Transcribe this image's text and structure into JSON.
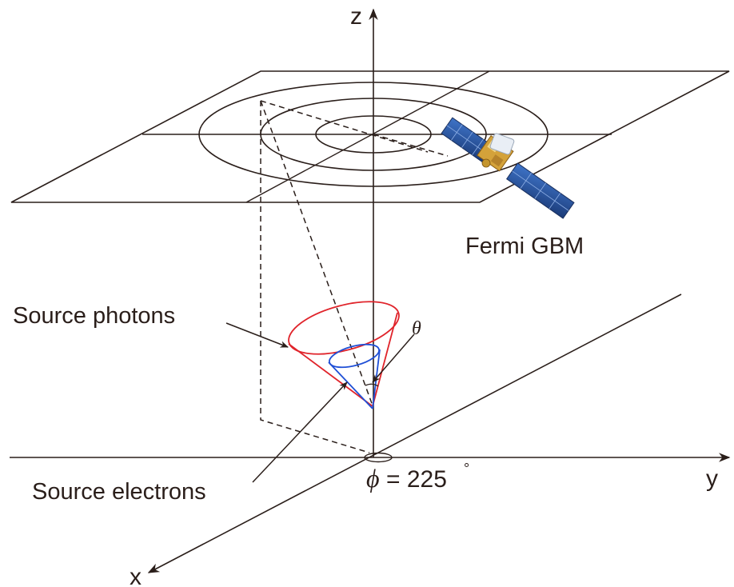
{
  "diagram": {
    "axes": {
      "z_label": "z",
      "y_label": "y",
      "x_label": "x"
    },
    "labels": {
      "satellite": "Fermi GBM",
      "photons": "Source photons",
      "electrons": "Source electrons",
      "theta": "θ",
      "phi_symbol": "ϕ",
      "phi_value": "= 225",
      "phi_degree": "°"
    },
    "colors": {
      "ink": "#2a1e1a",
      "photon_cone": "#e0242b",
      "electron_cone": "#1f4fd6",
      "panel_blue": "#2c5aa8",
      "gold": "#d4a23a"
    }
  }
}
